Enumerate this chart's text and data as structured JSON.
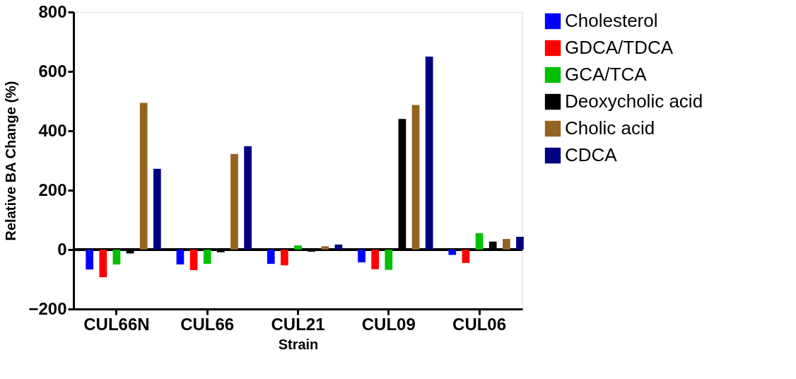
{
  "chart_data": {
    "type": "bar",
    "xlabel": "Strain",
    "ylabel": "Relative BA Change (%)",
    "categories": [
      "CUL66N",
      "CUL66",
      "CUL21",
      "CUL09",
      "CUL06"
    ],
    "series": [
      {
        "name": "Cholesterol",
        "color": "#0000ff",
        "values": [
          -67,
          -50,
          -48,
          -43,
          -18
        ]
      },
      {
        "name": "GDCA/TDCA",
        "color": "#ff0000",
        "values": [
          -93,
          -69,
          -53,
          -66,
          -45
        ]
      },
      {
        "name": "GCA/TCA",
        "color": "#00c000",
        "values": [
          -50,
          -48,
          14,
          -68,
          55
        ]
      },
      {
        "name": "Deoxycholic acid",
        "color": "#000000",
        "values": [
          -13,
          -9,
          -7,
          440,
          27
        ]
      },
      {
        "name": "Cholic acid",
        "color": "#956321",
        "values": [
          494,
          322,
          11,
          487,
          36
        ]
      },
      {
        "name": "CDCA",
        "color": "#000080",
        "values": [
          272,
          348,
          17,
          650,
          43
        ]
      }
    ],
    "ylim": [
      -200,
      800
    ],
    "yticks": [
      -200,
      0,
      200,
      400,
      600,
      800
    ],
    "grid": false,
    "legend": "right",
    "ref_lines": [
      {
        "axis": "y",
        "value": 0,
        "color": "#000000"
      }
    ]
  }
}
